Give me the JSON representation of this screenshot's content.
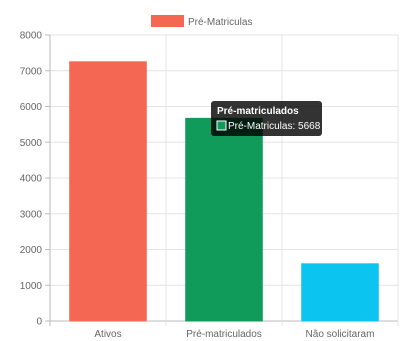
{
  "chart_data": {
    "type": "bar",
    "categories": [
      "Ativos",
      "Pré-matriculados",
      "Não solicitaram"
    ],
    "series": [
      {
        "name": "Pré-Matriculas",
        "values": [
          7250,
          5668,
          1600
        ],
        "colors": [
          "#f46853",
          "#119b5a",
          "#0cc4f0"
        ]
      }
    ],
    "ylim": [
      0,
      8000
    ],
    "yticks": [
      0,
      1000,
      2000,
      3000,
      4000,
      5000,
      6000,
      7000,
      8000
    ],
    "grid": true,
    "legend": {
      "position": "top",
      "label": "Pré-Matriculas",
      "color": "#f46853"
    },
    "tooltip": {
      "title": "Pré-matriculados",
      "label": "Pré-Matriculas: 5668",
      "swatch_color": "#119b5a",
      "category_index": 1
    }
  }
}
